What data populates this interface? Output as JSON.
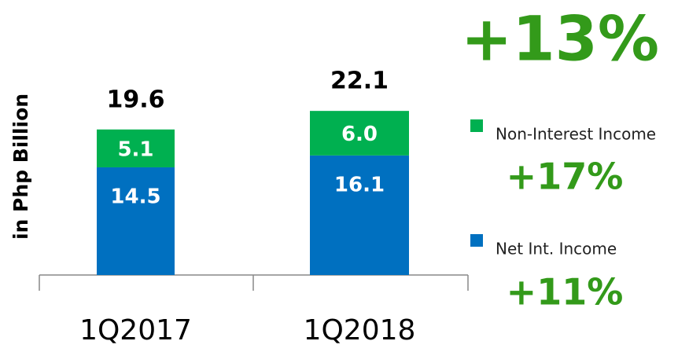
{
  "chart_data": {
    "type": "stacked_bar",
    "y_label": "in Php Billion",
    "categories": [
      "1Q2017",
      "1Q2018"
    ],
    "series": [
      {
        "name": "Net Int. Income",
        "color": "#0070c0",
        "values": [
          14.5,
          16.1
        ]
      },
      {
        "name": "Non-Interest Income",
        "color": "#00b050",
        "values": [
          5.1,
          6.0
        ],
        "value_labels": [
          "5.1",
          "6.0"
        ]
      }
    ],
    "totals": [
      19.6,
      22.1
    ],
    "annotation_color": "#339a1a",
    "annotations": [
      "+13%",
      "+17%",
      "+11%"
    ]
  }
}
